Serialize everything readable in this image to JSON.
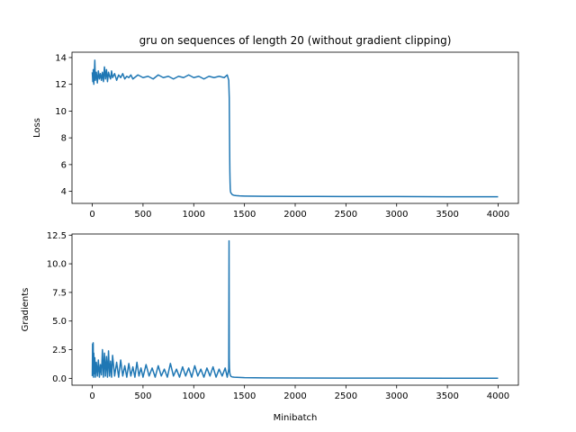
{
  "chart_data": [
    {
      "type": "line",
      "title": "gru on sequences of length 20 (without gradient clipping)",
      "xlabel": "",
      "ylabel": "Loss",
      "xlim": [
        -200,
        4200
      ],
      "ylim": [
        3.1,
        14.4
      ],
      "xticks": [
        0,
        500,
        1000,
        1500,
        2000,
        2500,
        3000,
        3500,
        4000
      ],
      "yticks": [
        4,
        6,
        8,
        10,
        12,
        14
      ],
      "ytick_labels": [
        "4",
        "6",
        "8",
        "10",
        "12",
        "14"
      ],
      "grid": false,
      "color": "#1f77b4",
      "series": [
        {
          "x": [
            0,
            5,
            10,
            15,
            20,
            25,
            30,
            40,
            50,
            60,
            70,
            80,
            90,
            100,
            110,
            120,
            130,
            140,
            150,
            160,
            170,
            180,
            190,
            200,
            220,
            240,
            260,
            280,
            300,
            320,
            340,
            360,
            380,
            400,
            450,
            500,
            550,
            600,
            650,
            700,
            750,
            800,
            850,
            900,
            950,
            1000,
            1050,
            1100,
            1150,
            1200,
            1250,
            1300,
            1330,
            1345,
            1350,
            1352,
            1354,
            1356,
            1358,
            1360,
            1362,
            1365,
            1370,
            1375,
            1380,
            1390,
            1400,
            1420,
            1450,
            1500,
            1600,
            1700,
            1800,
            2000,
            2200,
            2500,
            3000,
            3500,
            4000
          ],
          "values": [
            12.9,
            12.2,
            13.1,
            12.0,
            12.8,
            13.8,
            12.3,
            12.9,
            12.1,
            13.0,
            12.4,
            12.8,
            12.3,
            12.9,
            12.2,
            13.3,
            12.4,
            13.1,
            12.2,
            12.9,
            12.6,
            12.4,
            13.0,
            12.5,
            12.8,
            12.3,
            12.7,
            12.5,
            12.8,
            12.4,
            12.6,
            12.5,
            12.7,
            12.4,
            12.7,
            12.5,
            12.6,
            12.4,
            12.7,
            12.5,
            12.6,
            12.4,
            12.6,
            12.5,
            12.7,
            12.5,
            12.6,
            12.4,
            12.6,
            12.5,
            12.6,
            12.5,
            12.7,
            12.3,
            11.0,
            9.0,
            7.0,
            5.5,
            4.7,
            4.2,
            4.0,
            3.9,
            3.85,
            3.8,
            3.75,
            3.72,
            3.7,
            3.68,
            3.66,
            3.65,
            3.64,
            3.63,
            3.63,
            3.62,
            3.62,
            3.61,
            3.61,
            3.6,
            3.6
          ]
        }
      ]
    },
    {
      "type": "line",
      "title": "",
      "xlabel": "Minibatch",
      "ylabel": "Gradients",
      "xlim": [
        -200,
        4200
      ],
      "ylim": [
        -0.6,
        12.6
      ],
      "xticks": [
        0,
        500,
        1000,
        1500,
        2000,
        2500,
        3000,
        3500,
        4000
      ],
      "yticks": [
        0.0,
        2.5,
        5.0,
        7.5,
        10.0,
        12.5
      ],
      "ytick_labels": [
        "0.0",
        "2.5",
        "5.0",
        "7.5",
        "10.0",
        "12.5"
      ],
      "grid": false,
      "color": "#1f77b4",
      "series": [
        {
          "x": [
            0,
            3,
            6,
            9,
            12,
            15,
            20,
            25,
            30,
            40,
            50,
            60,
            70,
            80,
            90,
            100,
            110,
            120,
            130,
            140,
            150,
            160,
            170,
            180,
            190,
            200,
            220,
            240,
            260,
            280,
            300,
            320,
            340,
            360,
            380,
            400,
            420,
            440,
            460,
            480,
            500,
            530,
            560,
            590,
            620,
            650,
            680,
            710,
            740,
            770,
            800,
            830,
            860,
            890,
            920,
            950,
            980,
            1010,
            1040,
            1070,
            1100,
            1130,
            1160,
            1190,
            1220,
            1250,
            1280,
            1310,
            1330,
            1345,
            1348,
            1350,
            1352,
            1355,
            1358,
            1362,
            1366,
            1370,
            1380,
            1400,
            1450,
            1500,
            1700,
            2000,
            2500,
            3000,
            3500,
            4000
          ],
          "values": [
            0.2,
            3.0,
            0.3,
            3.1,
            0.1,
            2.2,
            0.4,
            1.8,
            0.1,
            1.4,
            0.2,
            1.6,
            0.1,
            1.2,
            0.3,
            2.5,
            0.1,
            2.2,
            0.2,
            1.9,
            0.1,
            2.4,
            0.2,
            1.5,
            0.1,
            2.0,
            0.2,
            1.4,
            0.1,
            1.6,
            0.2,
            1.1,
            0.1,
            1.3,
            0.2,
            1.0,
            0.1,
            1.4,
            0.2,
            0.9,
            0.1,
            1.2,
            0.2,
            0.9,
            0.1,
            1.1,
            0.2,
            0.8,
            0.1,
            1.3,
            0.2,
            0.8,
            0.1,
            1.0,
            0.2,
            0.9,
            0.1,
            1.1,
            0.2,
            0.8,
            0.1,
            0.9,
            0.2,
            1.0,
            0.1,
            0.8,
            0.2,
            0.9,
            0.1,
            0.8,
            12.0,
            1.8,
            0.9,
            0.5,
            0.35,
            0.25,
            0.18,
            0.15,
            0.12,
            0.1,
            0.08,
            0.06,
            0.04,
            0.03,
            0.02,
            0.02,
            0.01,
            0.01
          ]
        }
      ]
    }
  ]
}
